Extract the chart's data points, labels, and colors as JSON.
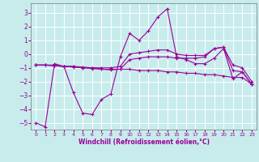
{
  "xlabel": "Windchill (Refroidissement éolien,°C)",
  "background_color": "#c8ecec",
  "grid_color": "#b0d0d0",
  "line_color": "#990099",
  "xlim": [
    -0.5,
    23.5
  ],
  "ylim": [
    -5.5,
    3.7
  ],
  "yticks": [
    -5,
    -4,
    -3,
    -2,
    -1,
    0,
    1,
    2,
    3
  ],
  "xticks": [
    0,
    1,
    2,
    3,
    4,
    5,
    6,
    7,
    8,
    9,
    10,
    11,
    12,
    13,
    14,
    15,
    16,
    17,
    18,
    19,
    20,
    21,
    22,
    23
  ],
  "x": [
    0,
    1,
    2,
    3,
    4,
    5,
    6,
    7,
    8,
    9,
    10,
    11,
    12,
    13,
    14,
    15,
    16,
    17,
    18,
    19,
    20,
    21,
    22,
    23
  ],
  "series1": [
    -5.0,
    -5.3,
    -0.7,
    -0.9,
    -2.8,
    -4.3,
    -4.4,
    -3.3,
    -2.9,
    -0.2,
    1.5,
    1.0,
    1.7,
    2.7,
    3.3,
    -0.2,
    -0.4,
    -0.7,
    -0.7,
    -0.3,
    0.4,
    -1.8,
    -1.3,
    -2.2
  ],
  "series2": [
    -0.8,
    -0.8,
    -0.8,
    -0.9,
    -0.9,
    -1.0,
    -1.0,
    -1.1,
    -1.1,
    -1.1,
    -1.1,
    -1.2,
    -1.2,
    -1.2,
    -1.3,
    -1.3,
    -1.4,
    -1.4,
    -1.5,
    -1.5,
    -1.6,
    -1.7,
    -1.7,
    -2.2
  ],
  "series3": [
    -0.8,
    -0.8,
    -0.85,
    -0.9,
    -0.95,
    -1.0,
    -1.05,
    -1.1,
    -1.15,
    -1.1,
    -0.4,
    -0.3,
    -0.2,
    -0.2,
    -0.2,
    -0.3,
    -0.3,
    -0.3,
    -0.2,
    0.4,
    0.5,
    -1.2,
    -1.3,
    -2.2
  ],
  "series4": [
    -0.8,
    -0.8,
    -0.85,
    -0.9,
    -0.9,
    -0.95,
    -1.0,
    -1.0,
    -1.0,
    -0.9,
    0.0,
    0.1,
    0.2,
    0.3,
    0.3,
    0.0,
    -0.1,
    -0.1,
    -0.1,
    0.4,
    0.5,
    -0.8,
    -1.0,
    -2.0
  ]
}
